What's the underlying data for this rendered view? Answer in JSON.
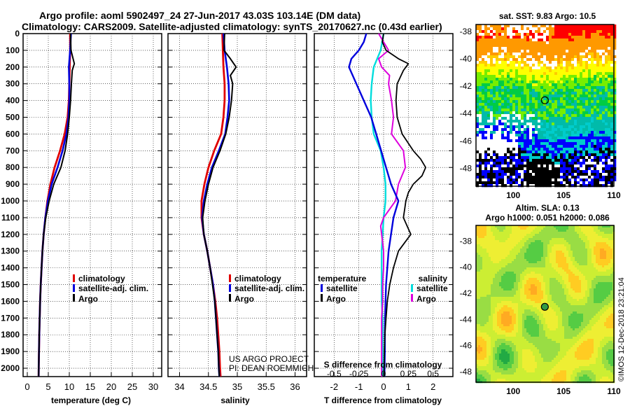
{
  "header": {
    "line1": "Argo profile: aoml 5902497_24 27-Jun-2017 43.03S 103.14E (DM data)",
    "line2": "Climatology: CARS2009. Satellite-adjusted climatology: synTS_20170627.nc (0.43d earlier)"
  },
  "colors": {
    "climatology": "#e00000",
    "satellite": "#0000dd",
    "argo": "#000000",
    "satellite_s": "#00dddd",
    "argo_s": "#dd00dd"
  },
  "depth_axis": {
    "ticks": [
      0,
      100,
      200,
      300,
      400,
      500,
      600,
      700,
      800,
      900,
      1000,
      1100,
      1200,
      1300,
      1400,
      1500,
      1600,
      1700,
      1800,
      1900,
      2000
    ],
    "range": [
      0,
      2050
    ]
  },
  "chart_data": [
    {
      "type": "line",
      "id": "temperature",
      "xlabel": "temperature (deg C)",
      "xlim": [
        -1,
        32
      ],
      "xticks": [
        0,
        5,
        10,
        15,
        20,
        25,
        30
      ],
      "ylabel": "depth",
      "ylim": [
        0,
        2050
      ],
      "legend": [
        "climatology",
        "satellite-adj. clim.",
        "Argo"
      ],
      "series": [
        {
          "name": "climatology",
          "depth": [
            0,
            100,
            200,
            300,
            400,
            500,
            600,
            700,
            800,
            900,
            1000,
            1100,
            1200,
            1300,
            1400,
            1500,
            1600,
            1700,
            1800,
            1900,
            2000,
            2050
          ],
          "values": [
            10.2,
            10.2,
            10.1,
            10.0,
            9.9,
            9.6,
            8.9,
            7.8,
            6.5,
            5.5,
            4.8,
            4.3,
            3.9,
            3.6,
            3.4,
            3.2,
            3.05,
            2.95,
            2.85,
            2.78,
            2.72,
            2.7
          ]
        },
        {
          "name": "satellite-adj. clim.",
          "depth": [
            0,
            100,
            200,
            300,
            400,
            500,
            600,
            700,
            800,
            900,
            1000,
            1100,
            1200,
            1300,
            1400,
            1500,
            1600,
            1700,
            1800,
            1900,
            2000,
            2050
          ],
          "values": [
            10.4,
            10.2,
            9.9,
            10.0,
            10.0,
            9.8,
            9.3,
            8.4,
            7.2,
            5.8,
            4.9,
            4.3,
            3.9,
            3.6,
            3.4,
            3.2,
            3.05,
            2.95,
            2.85,
            2.78,
            2.72,
            2.7
          ]
        },
        {
          "name": "Argo",
          "depth": [
            0,
            100,
            180,
            220,
            300,
            400,
            500,
            600,
            700,
            800,
            900,
            1000,
            1100,
            1200,
            1300,
            1400,
            1500,
            1600,
            1700,
            1800,
            1900,
            2000,
            2050
          ],
          "values": [
            10.3,
            10.4,
            11.2,
            10.7,
            10.5,
            10.3,
            10.0,
            9.6,
            9.0,
            8.0,
            6.3,
            5.2,
            4.4,
            3.9,
            3.6,
            3.4,
            3.2,
            3.05,
            2.95,
            2.85,
            2.78,
            2.72,
            2.7
          ]
        }
      ]
    },
    {
      "type": "line",
      "id": "salinity",
      "xlabel": "salinity",
      "xlim": [
        33.8,
        36.2
      ],
      "xticks": [
        34,
        34.5,
        35,
        35.5,
        36
      ],
      "ylabel": "depth",
      "ylim": [
        0,
        2050
      ],
      "legend": [
        "climatology",
        "satellite-adj. clim.",
        "Argo"
      ],
      "series": [
        {
          "name": "climatology",
          "depth": [
            0,
            100,
            200,
            300,
            400,
            500,
            600,
            700,
            800,
            900,
            1000,
            1100,
            1200,
            1300,
            1400,
            1500,
            1600,
            1700,
            1800,
            1900,
            2000,
            2050
          ],
          "values": [
            34.74,
            34.75,
            34.76,
            34.78,
            34.78,
            34.76,
            34.72,
            34.6,
            34.5,
            34.43,
            34.38,
            34.38,
            34.42,
            34.48,
            34.53,
            34.58,
            34.62,
            34.65,
            34.67,
            34.69,
            34.7,
            34.71
          ]
        },
        {
          "name": "satellite-adj. clim.",
          "depth": [
            0,
            100,
            200,
            300,
            400,
            500,
            600,
            700,
            800,
            900,
            1000,
            1100,
            1200,
            1300,
            1400,
            1500,
            1600,
            1700,
            1800,
            1900,
            2000,
            2050
          ],
          "values": [
            34.76,
            34.78,
            34.82,
            34.85,
            34.86,
            34.83,
            34.79,
            34.68,
            34.56,
            34.48,
            34.42,
            34.39,
            34.42,
            34.48,
            34.53,
            34.58,
            34.61,
            34.63,
            34.65,
            34.67,
            34.68,
            34.69
          ]
        },
        {
          "name": "Argo",
          "depth": [
            0,
            100,
            150,
            200,
            250,
            300,
            400,
            500,
            600,
            700,
            800,
            900,
            1000,
            1100,
            1200,
            1300,
            1400,
            1500,
            1600,
            1700,
            1800,
            1900,
            2000,
            2050
          ],
          "values": [
            34.78,
            34.77,
            34.88,
            34.98,
            34.88,
            34.92,
            34.9,
            34.86,
            34.8,
            34.7,
            34.58,
            34.5,
            34.44,
            34.4,
            34.42,
            34.48,
            34.53,
            34.57,
            34.61,
            34.63,
            34.65,
            34.67,
            34.68,
            34.69
          ]
        }
      ]
    },
    {
      "type": "line",
      "id": "difference",
      "xlabel": "T difference from climatology",
      "xlabel_top": "S difference from climatology",
      "xlim": [
        -2.8,
        2.8
      ],
      "xticks": [
        -2,
        -1,
        0,
        1,
        2
      ],
      "s_tick_labels": [
        "-0.5",
        "-0.25",
        "0",
        "0.25",
        "0.5"
      ],
      "s_ticks": [
        -0.5,
        -0.25,
        0,
        0.25,
        0.5
      ],
      "s_scale": 4,
      "ylabel": "depth",
      "ylim": [
        0,
        2050
      ],
      "legend_temperature_title": "temperature",
      "legend_salinity_title": "salinity",
      "series": [
        {
          "name": "T satellite",
          "depth": [
            0,
            50,
            100,
            150,
            200,
            300,
            400,
            500,
            600,
            700,
            800,
            900,
            1000,
            1100,
            1200,
            1300,
            1400,
            1500,
            1600,
            1700,
            1800,
            1900,
            2000,
            2050
          ],
          "values": [
            -0.7,
            -0.8,
            -1.0,
            -1.3,
            -1.4,
            -1.1,
            -0.8,
            -0.5,
            -0.3,
            -0.1,
            0.1,
            0.3,
            0.6,
            0.4,
            0.3,
            0.2,
            0.15,
            0.1,
            0.08,
            0.06,
            0.05,
            0.05,
            0.04,
            0.04
          ]
        },
        {
          "name": "T Argo",
          "depth": [
            0,
            50,
            100,
            150,
            180,
            220,
            300,
            400,
            500,
            600,
            700,
            750,
            800,
            850,
            900,
            950,
            1000,
            1050,
            1100,
            1150,
            1200,
            1300,
            1400,
            1500,
            1600,
            1700,
            1800,
            1900,
            2000,
            2050
          ],
          "values": [
            0.0,
            -0.05,
            0.1,
            0.6,
            1.0,
            0.8,
            0.55,
            0.5,
            0.55,
            0.75,
            1.2,
            1.5,
            1.7,
            1.55,
            1.2,
            1.0,
            0.9,
            0.85,
            0.8,
            0.95,
            1.1,
            0.6,
            0.4,
            0.25,
            0.15,
            0.1,
            0.05,
            0.03,
            0.02,
            0.02
          ]
        },
        {
          "name": "S satellite",
          "depth": [
            0,
            100,
            200,
            300,
            400,
            500,
            600,
            700,
            800,
            900,
            1000,
            1100,
            1200,
            1300,
            1400,
            1500,
            1600,
            1700,
            1800,
            1900,
            2000,
            2050
          ],
          "values": [
            0.0,
            -0.03,
            -0.1,
            -0.12,
            -0.13,
            -0.12,
            -0.1,
            -0.03,
            0.0,
            0.02,
            0.02,
            0.0,
            -0.01,
            -0.02,
            -0.02,
            -0.02,
            -0.02,
            -0.01,
            -0.01,
            -0.01,
            -0.01,
            -0.01
          ]
        },
        {
          "name": "S Argo",
          "depth": [
            0,
            50,
            100,
            150,
            200,
            250,
            300,
            400,
            500,
            600,
            700,
            800,
            900,
            1000,
            1100,
            1150,
            1200,
            1300,
            1400,
            1500,
            1600,
            1700,
            1800,
            1900,
            2000,
            2050
          ],
          "values": [
            -0.05,
            0.0,
            0.05,
            -0.05,
            -0.02,
            0.06,
            0.05,
            0.08,
            0.1,
            0.08,
            0.2,
            0.22,
            0.15,
            0.12,
            0.0,
            -0.03,
            -0.02,
            0.0,
            0.0,
            -0.01,
            -0.01,
            -0.02,
            -0.02,
            -0.02,
            -0.02,
            -0.02
          ]
        }
      ]
    },
    {
      "type": "heatmap",
      "id": "sst_map",
      "title": "sat. SST: 9.83 Argo: 10.5",
      "xlim": [
        96.3,
        110
      ],
      "xticks": [
        100,
        105,
        110
      ],
      "ylim": [
        -49.3,
        -37.5
      ],
      "yticks": [
        -38,
        -40,
        -42,
        -44,
        -46,
        -48
      ],
      "float_position": {
        "lon": 103.14,
        "lat": -43.03
      },
      "palette": [
        "#ff0000",
        "#ff9900",
        "#ffcc00",
        "#ffff00",
        "#77ee00",
        "#00cc44",
        "#00bbaa",
        "#00cccc",
        "#0000ff",
        "#000000",
        "#ffffff"
      ]
    },
    {
      "type": "heatmap",
      "id": "sla_map",
      "title1": "Altim. SLA: 0.13",
      "title2": "Argo h1000: 0.051 h2000: 0.086",
      "xlim": [
        96.3,
        110
      ],
      "xticks": [
        100,
        105,
        110
      ],
      "ylim": [
        -48.8,
        -36.8
      ],
      "yticks": [
        -38,
        -40,
        -42,
        -44,
        -46,
        -48
      ],
      "float_position": {
        "lon": 103.14,
        "lat": -43.03
      },
      "palette": [
        "#22aa44",
        "#55cc44",
        "#99dd44",
        "#ccee33",
        "#eeee33",
        "#ffcc22",
        "#ffaa22"
      ]
    }
  ],
  "credits": {
    "line1": "US ARGO PROJECT",
    "line2": "PI: DEAN ROEMMICH"
  },
  "footer": {
    "date_stamp": "©IMOS 12-Dec-2018 23:21:04"
  }
}
